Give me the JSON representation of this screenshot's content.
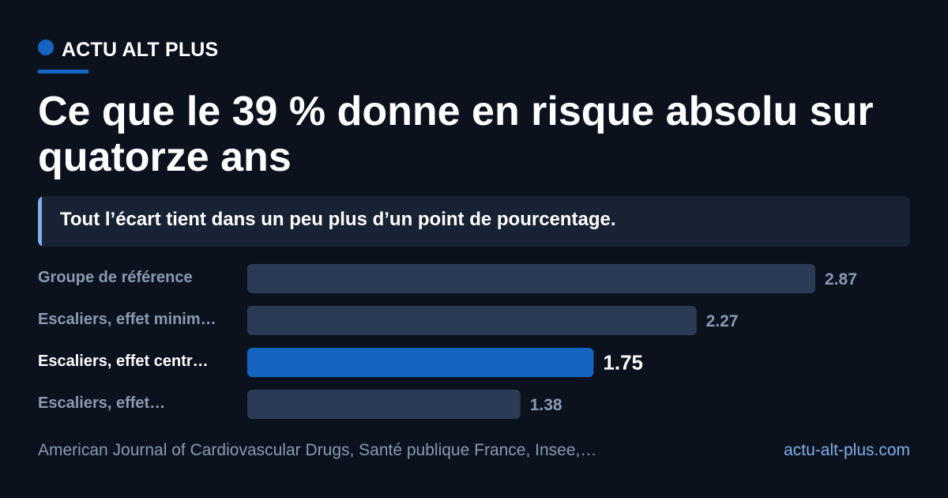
{
  "brand": {
    "name": "ACTU ALT PLUS",
    "accent_color": "#1565c0"
  },
  "title": "Ce que le 39 % donne en risque absolu sur quatorze ans",
  "subtitle": "Tout l’écart tient dans un peu plus d’un point de pourcentage.",
  "footer": {
    "source": "American Journal of Cardiovascular Drugs, Santé publique France, Insee,…",
    "site": "actu-alt-plus.com"
  },
  "chart_data": {
    "type": "bar",
    "orientation": "horizontal",
    "categories": [
      "Groupe de référence",
      "Escaliers, effet minim…",
      "Escaliers, effet centr…",
      "Escaliers, effet…"
    ],
    "values": [
      2.87,
      2.27,
      1.75,
      1.38
    ],
    "value_labels": [
      "2.87",
      "2.27",
      "1.75",
      "1.38"
    ],
    "highlight_index": 2,
    "colors": {
      "bar": "#2c3b55",
      "highlight_bar": "#1565c0",
      "label": "#8a9ab3",
      "highlight_label": "#ffffff"
    },
    "grid": false,
    "legend": "none"
  }
}
